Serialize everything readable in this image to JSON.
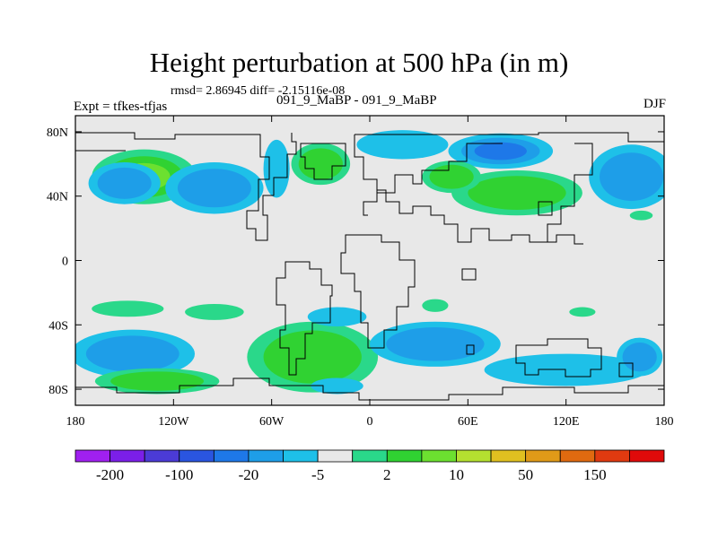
{
  "title": "Height perturbation at 500 hPa (in m)",
  "stats_line": "rmsd= 2.86945 diff= -2.15116e-08",
  "experiment_label": "Expt = tfkes-tfjas",
  "runs_label": "091_9_MaBP - 091_9_MaBP",
  "season_label": "DJF",
  "colors": {
    "background": "#e8e8e8",
    "coast": "#000000"
  },
  "chart_data": {
    "type": "heatmap",
    "title": "Height perturbation at 500 hPa (in m)",
    "x_ticks": [
      "180",
      "120W",
      "60W",
      "0",
      "60E",
      "120E",
      "180"
    ],
    "x_tick_values": [
      -180,
      -120,
      -60,
      0,
      60,
      120,
      180
    ],
    "y_ticks": [
      "80N",
      "40N",
      "0",
      "40S",
      "80S"
    ],
    "y_tick_values": [
      80,
      40,
      0,
      -40,
      -80
    ],
    "xlim": [
      -180,
      180
    ],
    "ylim": [
      -90,
      90
    ],
    "colorbar": {
      "labels": [
        "-200",
        "-100",
        "-20",
        "-5",
        "2",
        "10",
        "50",
        "150"
      ],
      "label_after_box": [
        1,
        3,
        5,
        7,
        9,
        11,
        13,
        15
      ],
      "colors": [
        "#a020f0",
        "#7b1fe8",
        "#4b3bd6",
        "#2a55e0",
        "#1e78e8",
        "#1e9ee8",
        "#1ec0e8",
        "#e8e8e8",
        "#2ad88a",
        "#30d232",
        "#6ce030",
        "#b4e030",
        "#e0c020",
        "#e09a18",
        "#e06a10",
        "#e03a10",
        "#e00a0a"
      ]
    },
    "anomalies": [
      {
        "lon": -138,
        "lat": 52,
        "rx": 32,
        "ry": 17,
        "value": 12
      },
      {
        "lon": -150,
        "lat": 48,
        "rx": 22,
        "ry": 13,
        "value": -5
      },
      {
        "lon": -95,
        "lat": 45,
        "rx": 30,
        "ry": 16,
        "value": -9
      },
      {
        "lon": -57,
        "lat": 57,
        "rx": 8,
        "ry": 18,
        "value": -4
      },
      {
        "lon": -30,
        "lat": 60,
        "rx": 18,
        "ry": 13,
        "value": 6
      },
      {
        "lon": 20,
        "lat": 72,
        "rx": 28,
        "ry": 9,
        "value": -4
      },
      {
        "lon": 80,
        "lat": 68,
        "rx": 32,
        "ry": 11,
        "value": -10
      },
      {
        "lon": 90,
        "lat": 42,
        "rx": 40,
        "ry": 14,
        "value": 9
      },
      {
        "lon": 50,
        "lat": 52,
        "rx": 18,
        "ry": 10,
        "value": 5
      },
      {
        "lon": 160,
        "lat": 52,
        "rx": 26,
        "ry": 20,
        "value": -9
      },
      {
        "lon": 166,
        "lat": 28,
        "rx": 7,
        "ry": 3,
        "value": 4
      },
      {
        "lon": -148,
        "lat": -30,
        "rx": 22,
        "ry": 5,
        "value": 4
      },
      {
        "lon": -95,
        "lat": -32,
        "rx": 18,
        "ry": 5,
        "value": 4
      },
      {
        "lon": -145,
        "lat": -58,
        "rx": 38,
        "ry": 15,
        "value": -6
      },
      {
        "lon": -130,
        "lat": -75,
        "rx": 38,
        "ry": 8,
        "value": 5
      },
      {
        "lon": -35,
        "lat": -60,
        "rx": 40,
        "ry": 22,
        "value": 8
      },
      {
        "lon": 40,
        "lat": -52,
        "rx": 40,
        "ry": 14,
        "value": -7
      },
      {
        "lon": -20,
        "lat": -35,
        "rx": 18,
        "ry": 6,
        "value": -4
      },
      {
        "lon": 120,
        "lat": -68,
        "rx": 50,
        "ry": 10,
        "value": -4
      },
      {
        "lon": 165,
        "lat": -60,
        "rx": 14,
        "ry": 12,
        "value": -5
      },
      {
        "lon": -20,
        "lat": -78,
        "rx": 16,
        "ry": 5,
        "value": -4
      },
      {
        "lon": 40,
        "lat": -28,
        "rx": 8,
        "ry": 4,
        "value": 4
      },
      {
        "lon": 130,
        "lat": -32,
        "rx": 8,
        "ry": 3,
        "value": 3
      }
    ]
  }
}
